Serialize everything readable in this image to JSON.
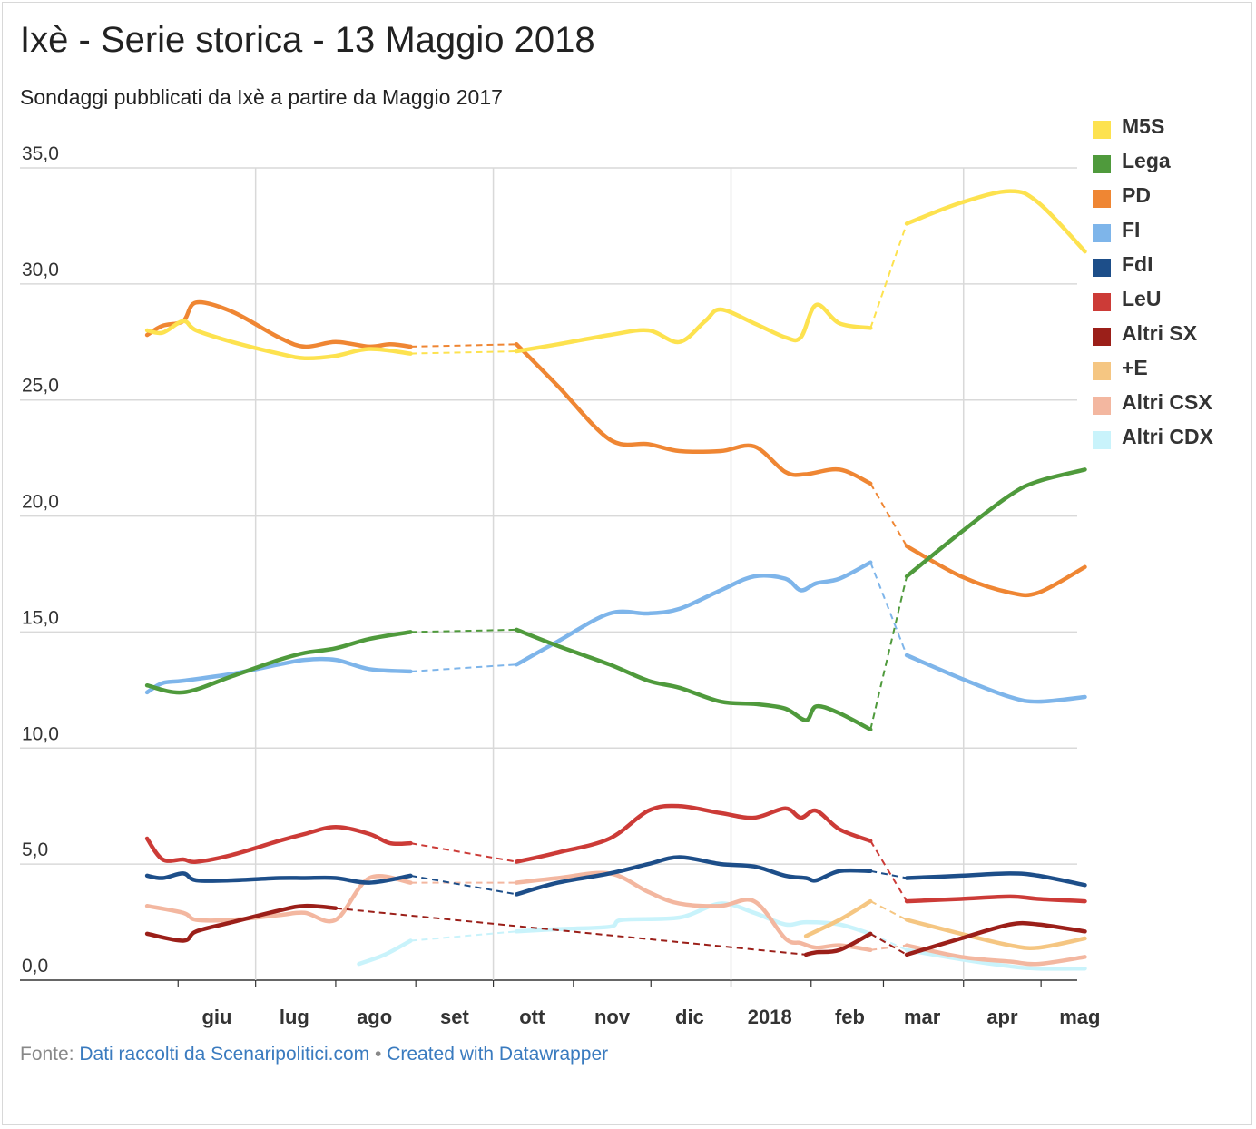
{
  "title": "Ixè - Serie storica - 13 Maggio 2018",
  "subtitle": "Sondaggi pubblicati da Ixè a partire da Maggio 2017",
  "source": {
    "prefix": "Fonte: ",
    "data_link": "Dati raccolti da Scenaripolitici.com",
    "separator": " • ",
    "credit_link": "Created with Datawrapper"
  },
  "chart_data": {
    "type": "line",
    "ylim": [
      0,
      35
    ],
    "yticks": [
      "0,0",
      "5,0",
      "10,0",
      "15,0",
      "20,0",
      "25,0",
      "30,0",
      "35,0"
    ],
    "yticks_values": [
      0,
      5,
      10,
      15,
      20,
      25,
      30,
      35
    ],
    "xlim": [
      "2017-05-01",
      "2018-05-15"
    ],
    "xticks": [
      {
        "label": "giu",
        "date": "2017-06-01"
      },
      {
        "label": "lug",
        "date": "2017-07-01"
      },
      {
        "label": "ago",
        "date": "2017-08-01"
      },
      {
        "label": "set",
        "date": "2017-09-01"
      },
      {
        "label": "ott",
        "date": "2017-10-01"
      },
      {
        "label": "nov",
        "date": "2017-11-01"
      },
      {
        "label": "dic",
        "date": "2017-12-01"
      },
      {
        "label": "2018",
        "date": "2018-01-01"
      },
      {
        "label": "feb",
        "date": "2018-02-01"
      },
      {
        "label": "mar",
        "date": "2018-03-01"
      },
      {
        "label": "apr",
        "date": "2018-04-01"
      },
      {
        "label": "mag",
        "date": "2018-05-01"
      }
    ],
    "gridlines_x": [
      "2017-07-01",
      "2017-10-01",
      "2018-01-01",
      "2018-04-01"
    ],
    "legend_position": "right",
    "series": [
      {
        "name": "M5S",
        "color": "#fde24f",
        "points": [
          [
            "2017-05-20",
            28.0
          ],
          [
            "2017-05-26",
            27.9
          ],
          [
            "2017-06-03",
            28.4
          ],
          [
            "2017-06-08",
            28.0
          ],
          [
            "2017-06-22",
            27.5
          ],
          [
            "2017-07-10",
            27.0
          ],
          [
            "2017-07-20",
            26.8
          ],
          [
            "2017-08-01",
            26.9
          ],
          [
            "2017-08-14",
            27.2
          ],
          [
            "2017-08-30",
            27.0
          ],
          [
            null,
            null
          ],
          [
            "2017-10-10",
            27.1
          ],
          [
            "2017-10-26",
            27.4
          ],
          [
            "2017-11-15",
            27.8
          ],
          [
            "2017-11-30",
            28.0
          ],
          [
            "2017-12-12",
            27.5
          ],
          [
            "2017-12-22",
            28.4
          ],
          [
            "2017-12-28",
            28.9
          ],
          [
            "2018-01-10",
            28.3
          ],
          [
            "2018-01-22",
            27.7
          ],
          [
            "2018-01-28",
            27.7
          ],
          [
            "2018-02-03",
            29.1
          ],
          [
            "2018-02-12",
            28.3
          ],
          [
            "2018-02-24",
            28.1
          ],
          [
            null,
            null
          ],
          [
            "2018-03-10",
            32.6
          ],
          [
            "2018-03-31",
            33.5
          ],
          [
            "2018-04-19",
            34.0
          ],
          [
            "2018-04-30",
            33.5
          ],
          [
            "2018-05-18",
            31.4
          ]
        ]
      },
      {
        "name": "Lega",
        "color": "#4f9a3c",
        "points": [
          [
            "2017-05-20",
            12.7
          ],
          [
            "2017-06-03",
            12.4
          ],
          [
            "2017-06-22",
            13.1
          ],
          [
            "2017-07-10",
            13.8
          ],
          [
            "2017-07-20",
            14.1
          ],
          [
            "2017-08-01",
            14.3
          ],
          [
            "2017-08-14",
            14.7
          ],
          [
            "2017-08-30",
            15.0
          ],
          [
            null,
            null
          ],
          [
            "2017-10-10",
            15.1
          ],
          [
            "2017-10-26",
            14.4
          ],
          [
            "2017-11-15",
            13.6
          ],
          [
            "2017-11-30",
            12.9
          ],
          [
            "2017-12-12",
            12.6
          ],
          [
            "2017-12-28",
            12.0
          ],
          [
            "2018-01-10",
            11.9
          ],
          [
            "2018-01-22",
            11.7
          ],
          [
            "2018-01-30",
            11.2
          ],
          [
            "2018-02-03",
            11.8
          ],
          [
            "2018-02-12",
            11.5
          ],
          [
            "2018-02-24",
            10.8
          ],
          [
            null,
            null
          ],
          [
            "2018-03-10",
            17.4
          ],
          [
            "2018-03-31",
            19.3
          ],
          [
            "2018-04-19",
            20.9
          ],
          [
            "2018-04-30",
            21.5
          ],
          [
            "2018-05-18",
            22.0
          ]
        ]
      },
      {
        "name": "PD",
        "color": "#ef8633",
        "points": [
          [
            "2017-05-20",
            27.8
          ],
          [
            "2017-05-26",
            28.2
          ],
          [
            "2017-06-03",
            28.4
          ],
          [
            "2017-06-08",
            29.2
          ],
          [
            "2017-06-22",
            28.8
          ],
          [
            "2017-07-10",
            27.7
          ],
          [
            "2017-07-20",
            27.3
          ],
          [
            "2017-08-01",
            27.5
          ],
          [
            "2017-08-14",
            27.3
          ],
          [
            "2017-08-22",
            27.4
          ],
          [
            "2017-08-30",
            27.3
          ],
          [
            null,
            null
          ],
          [
            "2017-10-10",
            27.4
          ],
          [
            "2017-10-26",
            25.6
          ],
          [
            "2017-11-15",
            23.3
          ],
          [
            "2017-11-30",
            23.1
          ],
          [
            "2017-12-12",
            22.8
          ],
          [
            "2017-12-28",
            22.8
          ],
          [
            "2018-01-10",
            23.0
          ],
          [
            "2018-01-22",
            21.9
          ],
          [
            "2018-01-30",
            21.8
          ],
          [
            "2018-02-12",
            22.0
          ],
          [
            "2018-02-24",
            21.4
          ],
          [
            null,
            null
          ],
          [
            "2018-03-10",
            18.7
          ],
          [
            "2018-03-31",
            17.4
          ],
          [
            "2018-04-19",
            16.7
          ],
          [
            "2018-04-30",
            16.7
          ],
          [
            "2018-05-18",
            17.8
          ]
        ]
      },
      {
        "name": "FI",
        "color": "#7eb5ea",
        "points": [
          [
            "2017-05-20",
            12.4
          ],
          [
            "2017-05-26",
            12.8
          ],
          [
            "2017-06-03",
            12.9
          ],
          [
            "2017-06-22",
            13.2
          ],
          [
            "2017-07-10",
            13.6
          ],
          [
            "2017-07-20",
            13.8
          ],
          [
            "2017-08-01",
            13.8
          ],
          [
            "2017-08-14",
            13.4
          ],
          [
            "2017-08-30",
            13.3
          ],
          [
            null,
            null
          ],
          [
            "2017-10-10",
            13.6
          ],
          [
            "2017-10-26",
            14.6
          ],
          [
            "2017-11-15",
            15.8
          ],
          [
            "2017-11-30",
            15.8
          ],
          [
            "2017-12-12",
            16.0
          ],
          [
            "2017-12-28",
            16.8
          ],
          [
            "2018-01-10",
            17.4
          ],
          [
            "2018-01-22",
            17.3
          ],
          [
            "2018-01-28",
            16.8
          ],
          [
            "2018-02-03",
            17.1
          ],
          [
            "2018-02-12",
            17.3
          ],
          [
            "2018-02-24",
            18.0
          ],
          [
            null,
            null
          ],
          [
            "2018-03-10",
            14.0
          ],
          [
            "2018-03-31",
            13.0
          ],
          [
            "2018-04-19",
            12.2
          ],
          [
            "2018-04-30",
            12.0
          ],
          [
            "2018-05-18",
            12.2
          ]
        ]
      },
      {
        "name": "FdI",
        "color": "#1d4e89",
        "points": [
          [
            "2017-05-20",
            4.5
          ],
          [
            "2017-05-26",
            4.4
          ],
          [
            "2017-06-03",
            4.6
          ],
          [
            "2017-06-08",
            4.3
          ],
          [
            "2017-06-22",
            4.3
          ],
          [
            "2017-07-10",
            4.4
          ],
          [
            "2017-07-20",
            4.4
          ],
          [
            "2017-08-01",
            4.4
          ],
          [
            "2017-08-14",
            4.2
          ],
          [
            "2017-08-30",
            4.5
          ],
          [
            null,
            null
          ],
          [
            "2017-10-10",
            3.7
          ],
          [
            "2017-10-26",
            4.2
          ],
          [
            "2017-11-15",
            4.6
          ],
          [
            "2017-11-30",
            5.0
          ],
          [
            "2017-12-12",
            5.3
          ],
          [
            "2017-12-28",
            5.0
          ],
          [
            "2018-01-10",
            4.9
          ],
          [
            "2018-01-22",
            4.5
          ],
          [
            "2018-01-30",
            4.4
          ],
          [
            "2018-02-03",
            4.3
          ],
          [
            "2018-02-12",
            4.7
          ],
          [
            "2018-02-24",
            4.7
          ],
          [
            null,
            null
          ],
          [
            "2018-03-10",
            4.4
          ],
          [
            "2018-03-31",
            4.5
          ],
          [
            "2018-04-19",
            4.6
          ],
          [
            "2018-04-30",
            4.5
          ],
          [
            "2018-05-18",
            4.1
          ]
        ]
      },
      {
        "name": "LeU",
        "color": "#cc3b37",
        "points": [
          [
            "2017-05-20",
            6.1
          ],
          [
            "2017-05-26",
            5.2
          ],
          [
            "2017-06-03",
            5.2
          ],
          [
            "2017-06-08",
            5.1
          ],
          [
            "2017-06-22",
            5.4
          ],
          [
            "2017-07-10",
            6.0
          ],
          [
            "2017-07-20",
            6.3
          ],
          [
            "2017-08-01",
            6.6
          ],
          [
            "2017-08-14",
            6.3
          ],
          [
            "2017-08-22",
            5.9
          ],
          [
            "2017-08-30",
            5.9
          ],
          [
            null,
            null
          ],
          [
            "2017-10-10",
            5.1
          ],
          [
            "2017-10-26",
            5.5
          ],
          [
            "2017-11-15",
            6.1
          ],
          [
            "2017-11-30",
            7.3
          ],
          [
            "2017-12-12",
            7.5
          ],
          [
            "2017-12-28",
            7.2
          ],
          [
            "2018-01-10",
            7.0
          ],
          [
            "2018-01-22",
            7.4
          ],
          [
            "2018-01-28",
            7.0
          ],
          [
            "2018-02-03",
            7.3
          ],
          [
            "2018-02-12",
            6.5
          ],
          [
            "2018-02-24",
            6.0
          ],
          [
            null,
            null
          ],
          [
            "2018-03-10",
            3.4
          ],
          [
            "2018-03-31",
            3.5
          ],
          [
            "2018-04-19",
            3.6
          ],
          [
            "2018-04-30",
            3.5
          ],
          [
            "2018-05-18",
            3.4
          ]
        ]
      },
      {
        "name": "Altri SX",
        "color": "#9b1f19",
        "points": [
          [
            "2017-05-20",
            2.0
          ],
          [
            "2017-06-03",
            1.7
          ],
          [
            "2017-06-08",
            2.1
          ],
          [
            "2017-06-22",
            2.5
          ],
          [
            "2017-07-10",
            3.0
          ],
          [
            "2017-07-20",
            3.2
          ],
          [
            "2017-08-01",
            3.1
          ],
          [
            null,
            null
          ],
          [
            "2018-01-30",
            1.1
          ],
          [
            "2018-02-03",
            1.2
          ],
          [
            "2018-02-12",
            1.3
          ],
          [
            "2018-02-24",
            2.0
          ],
          [
            null,
            null
          ],
          [
            "2018-03-10",
            1.1
          ],
          [
            "2018-03-31",
            1.8
          ],
          [
            "2018-04-19",
            2.4
          ],
          [
            "2018-04-30",
            2.4
          ],
          [
            "2018-05-18",
            2.1
          ]
        ]
      },
      {
        "name": "+E",
        "color": "#f5c682",
        "points": [
          [
            "2018-01-30",
            1.9
          ],
          [
            "2018-02-12",
            2.6
          ],
          [
            "2018-02-24",
            3.4
          ],
          [
            null,
            null
          ],
          [
            "2018-03-10",
            2.6
          ],
          [
            "2018-03-31",
            2.0
          ],
          [
            "2018-04-19",
            1.5
          ],
          [
            "2018-04-30",
            1.4
          ],
          [
            "2018-05-18",
            1.8
          ]
        ]
      },
      {
        "name": "Altri CSX",
        "color": "#f3b7a0",
        "points": [
          [
            "2017-05-20",
            3.2
          ],
          [
            "2017-06-03",
            2.9
          ],
          [
            "2017-06-08",
            2.6
          ],
          [
            "2017-06-22",
            2.6
          ],
          [
            "2017-07-10",
            2.8
          ],
          [
            "2017-07-20",
            2.9
          ],
          [
            "2017-08-01",
            2.6
          ],
          [
            "2017-08-14",
            4.4
          ],
          [
            "2017-08-30",
            4.2
          ],
          [
            null,
            null
          ],
          [
            "2017-10-10",
            4.2
          ],
          [
            "2017-10-26",
            4.4
          ],
          [
            "2017-11-15",
            4.6
          ],
          [
            "2017-11-30",
            3.8
          ],
          [
            "2017-12-12",
            3.3
          ],
          [
            "2017-12-28",
            3.2
          ],
          [
            "2018-01-10",
            3.4
          ],
          [
            "2018-01-22",
            1.8
          ],
          [
            "2018-01-28",
            1.6
          ],
          [
            "2018-02-03",
            1.4
          ],
          [
            "2018-02-12",
            1.5
          ],
          [
            "2018-02-24",
            1.3
          ],
          [
            null,
            null
          ],
          [
            "2018-03-10",
            1.5
          ],
          [
            "2018-03-31",
            1.0
          ],
          [
            "2018-04-19",
            0.8
          ],
          [
            "2018-04-30",
            0.7
          ],
          [
            "2018-05-18",
            1.0
          ]
        ]
      },
      {
        "name": "Altri CDX",
        "color": "#c9f3fb",
        "points": [
          [
            "2017-08-10",
            0.7
          ],
          [
            "2017-08-20",
            1.1
          ],
          [
            "2017-08-30",
            1.7
          ],
          [
            null,
            null
          ],
          [
            "2017-10-10",
            2.1
          ],
          [
            "2017-10-26",
            2.2
          ],
          [
            "2017-11-15",
            2.3
          ],
          [
            "2017-11-20",
            2.6
          ],
          [
            "2017-12-12",
            2.7
          ],
          [
            "2017-12-28",
            3.3
          ],
          [
            "2018-01-10",
            2.9
          ],
          [
            "2018-01-22",
            2.4
          ],
          [
            "2018-01-30",
            2.5
          ],
          [
            "2018-02-12",
            2.4
          ],
          [
            "2018-02-24",
            2.0
          ],
          [
            null,
            null
          ],
          [
            "2018-03-10",
            1.3
          ],
          [
            "2018-03-31",
            0.9
          ],
          [
            "2018-04-19",
            0.6
          ],
          [
            "2018-04-30",
            0.5
          ],
          [
            "2018-05-18",
            0.5
          ]
        ]
      }
    ]
  }
}
